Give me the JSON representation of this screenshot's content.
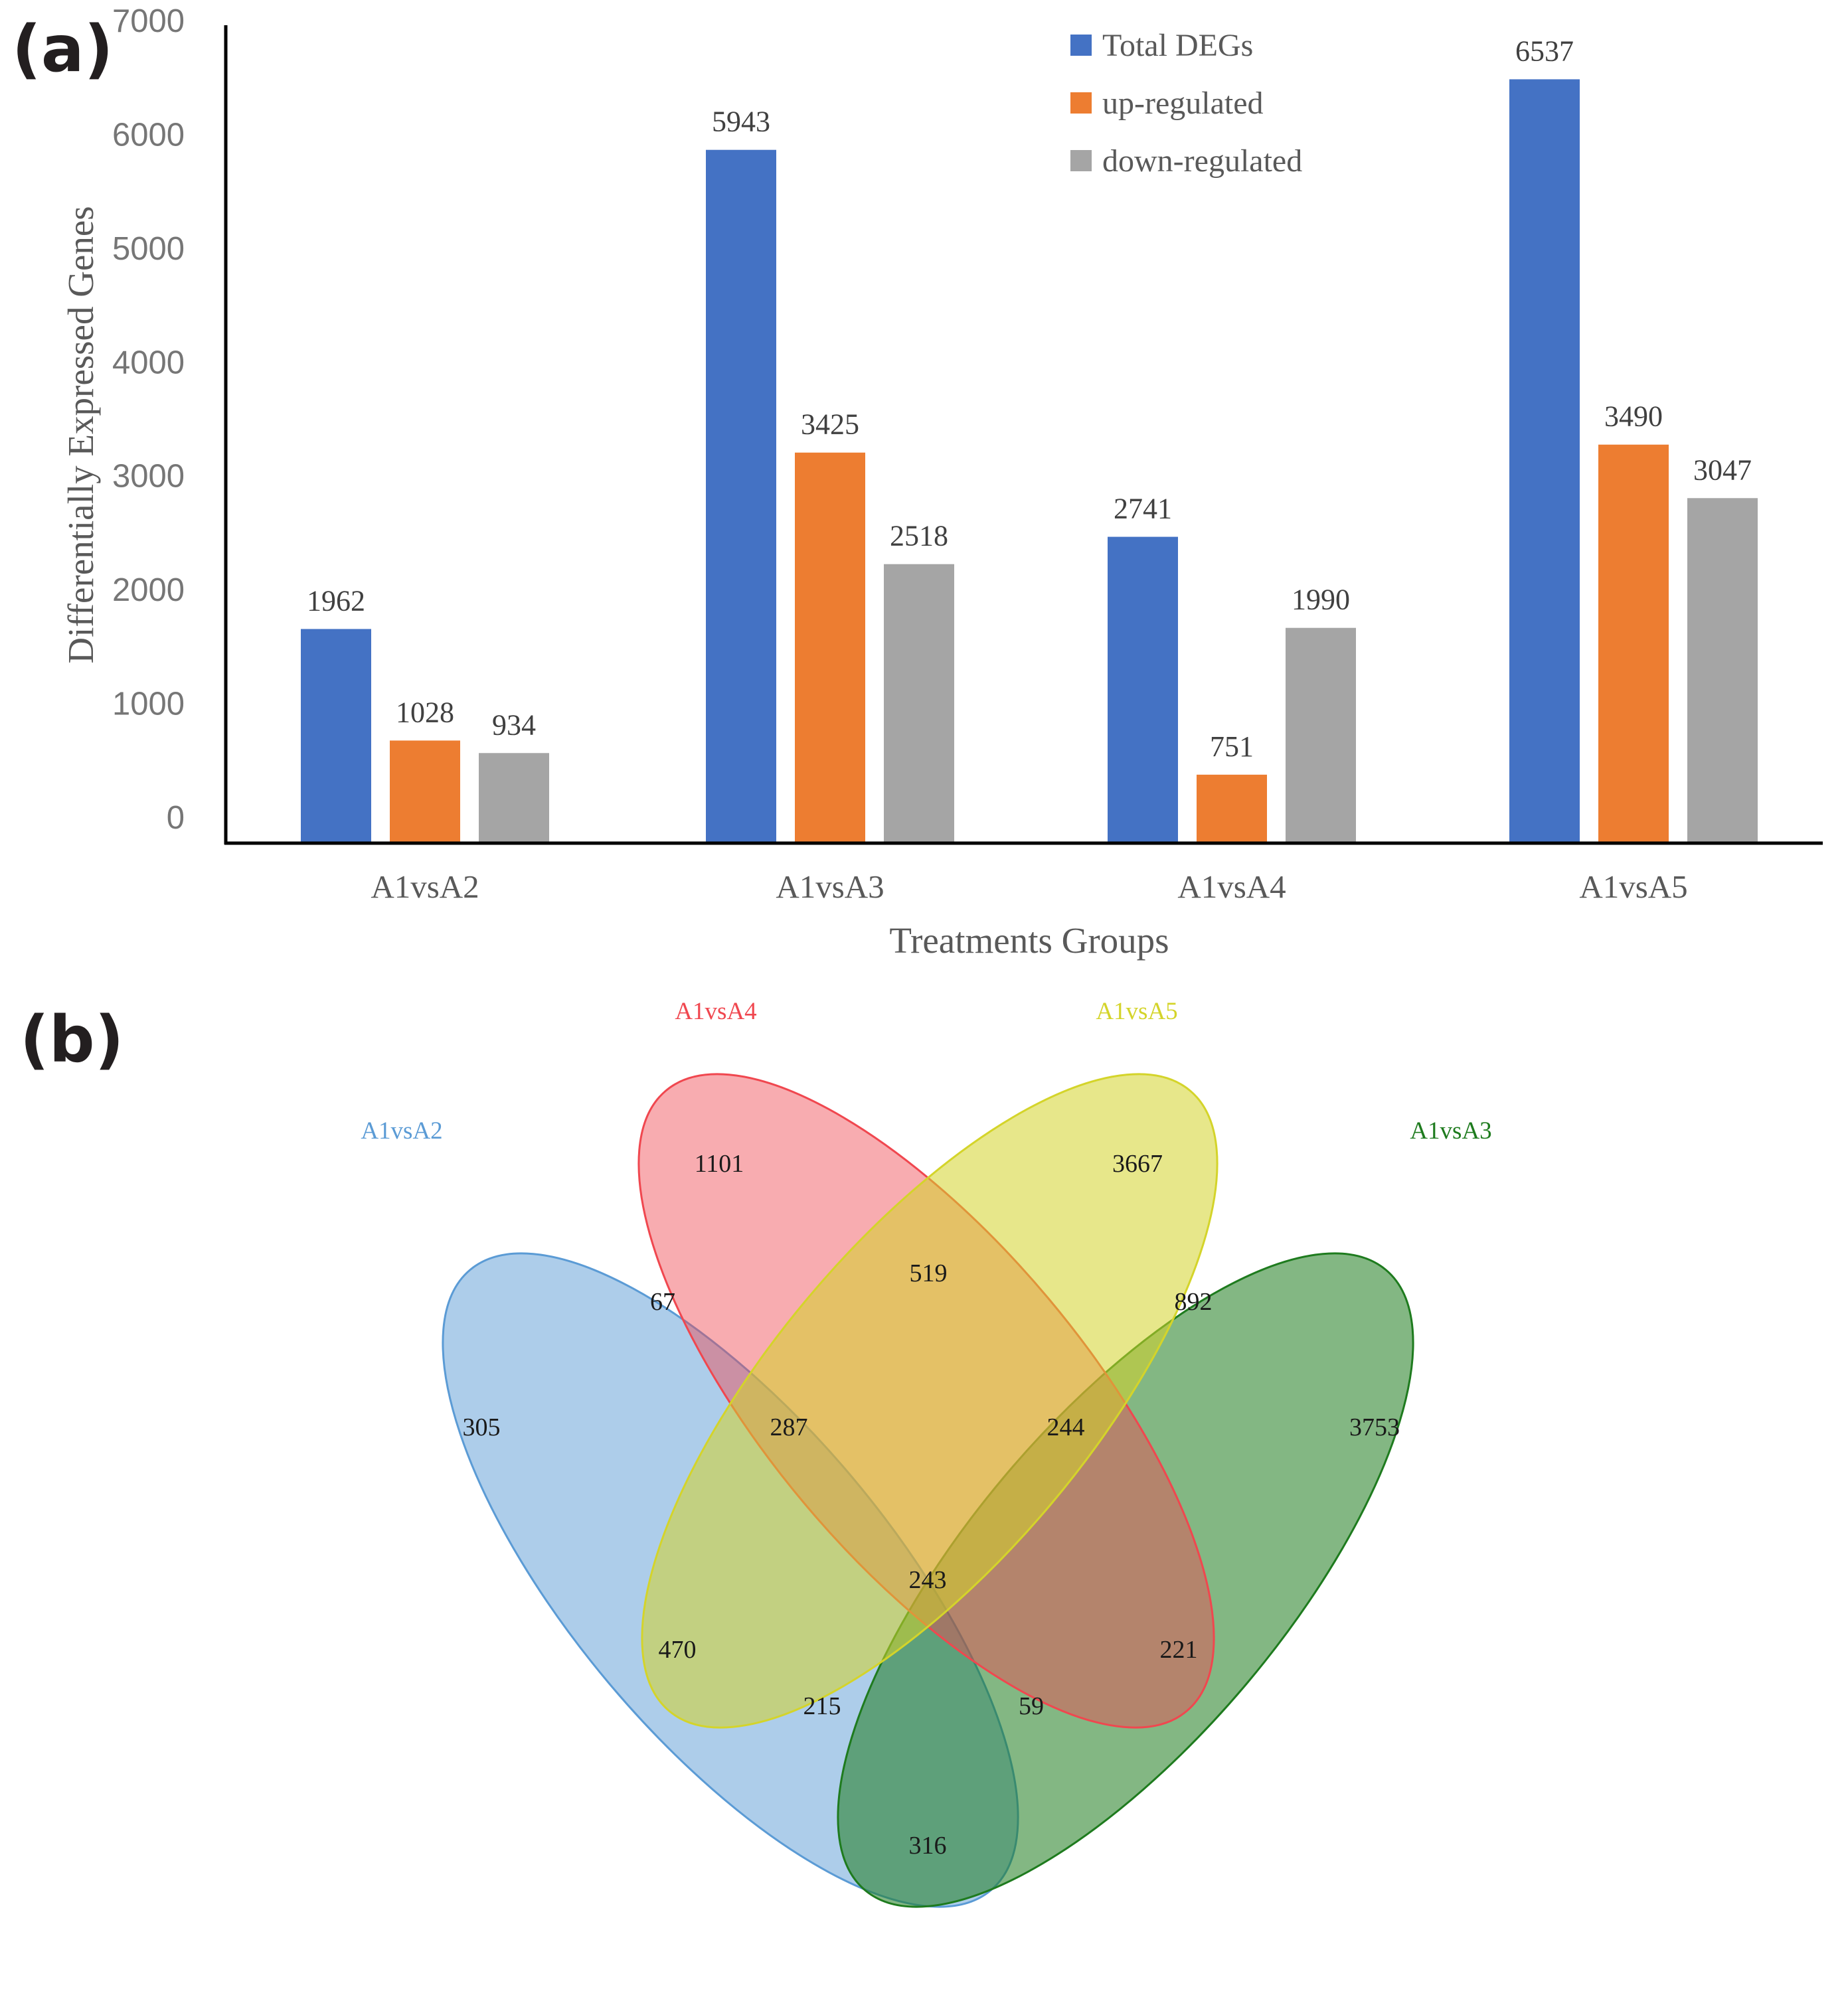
{
  "panel_labels": {
    "a": "(a)",
    "b": "(b)"
  },
  "chart_data": [
    {
      "type": "bar",
      "categories": [
        "A1vsA2",
        "A1vsA3",
        "A1vsA4",
        "A1vsA5"
      ],
      "series": [
        {
          "name": "Total DEGs",
          "color": "#4472c4",
          "values": [
            1962,
            5943,
            2741,
            6537
          ]
        },
        {
          "name": "up-regulated",
          "color": "#ed7d31",
          "values": [
            1028,
            3425,
            751,
            3490
          ]
        },
        {
          "name": "down-regulated",
          "color": "#a5a5a5",
          "values": [
            934,
            2518,
            1990,
            3047
          ]
        }
      ],
      "bar_heights_shown": [
        [
          1870,
          6080,
          2680,
          6700
        ],
        [
          890,
          3420,
          590,
          3490
        ],
        [
          780,
          2440,
          1880,
          3020
        ]
      ],
      "xlabel": "Treatments Groups",
      "ylabel": "Differentially Expressed Genes",
      "ylim": [
        0,
        7000
      ],
      "yticks": [
        "0",
        "1000",
        "2000",
        "3000",
        "4000",
        "5000",
        "6000",
        "7000"
      ],
      "legend_position": "top-center",
      "grid": false
    },
    {
      "type": "venn",
      "sets": [
        {
          "name": "A1vsA2",
          "color": "#5b9bd5"
        },
        {
          "name": "A1vsA4",
          "color": "#f0474f"
        },
        {
          "name": "A1vsA5",
          "color": "#d4d42a"
        },
        {
          "name": "A1vsA3",
          "color": "#1e7b1e"
        }
      ],
      "regions": [
        {
          "sets": [
            "A1vsA2"
          ],
          "count": "305"
        },
        {
          "sets": [
            "A1vsA4"
          ],
          "count": "1101"
        },
        {
          "sets": [
            "A1vsA5"
          ],
          "count": "3667"
        },
        {
          "sets": [
            "A1vsA3"
          ],
          "count": "3753"
        },
        {
          "sets": [
            "A1vsA2",
            "A1vsA4"
          ],
          "count": "67"
        },
        {
          "sets": [
            "A1vsA4",
            "A1vsA5"
          ],
          "count": "519"
        },
        {
          "sets": [
            "A1vsA5",
            "A1vsA3"
          ],
          "count": "892"
        },
        {
          "sets": [
            "A1vsA2",
            "A1vsA4",
            "A1vsA5"
          ],
          "count": "287"
        },
        {
          "sets": [
            "A1vsA4",
            "A1vsA5",
            "A1vsA3"
          ],
          "count": "244"
        },
        {
          "sets": [
            "A1vsA2",
            "A1vsA4",
            "A1vsA5",
            "A1vsA3"
          ],
          "count": "243"
        },
        {
          "sets": [
            "A1vsA2",
            "A1vsA5"
          ],
          "count": "470"
        },
        {
          "sets": [
            "A1vsA4",
            "A1vsA3"
          ],
          "count": "221"
        },
        {
          "sets": [
            "A1vsA2",
            "A1vsA5",
            "A1vsA3"
          ],
          "count": "215"
        },
        {
          "sets": [
            "A1vsA2",
            "A1vsA4",
            "A1vsA3"
          ],
          "count": "59"
        },
        {
          "sets": [
            "A1vsA2",
            "A1vsA3"
          ],
          "count": "316"
        }
      ]
    }
  ]
}
